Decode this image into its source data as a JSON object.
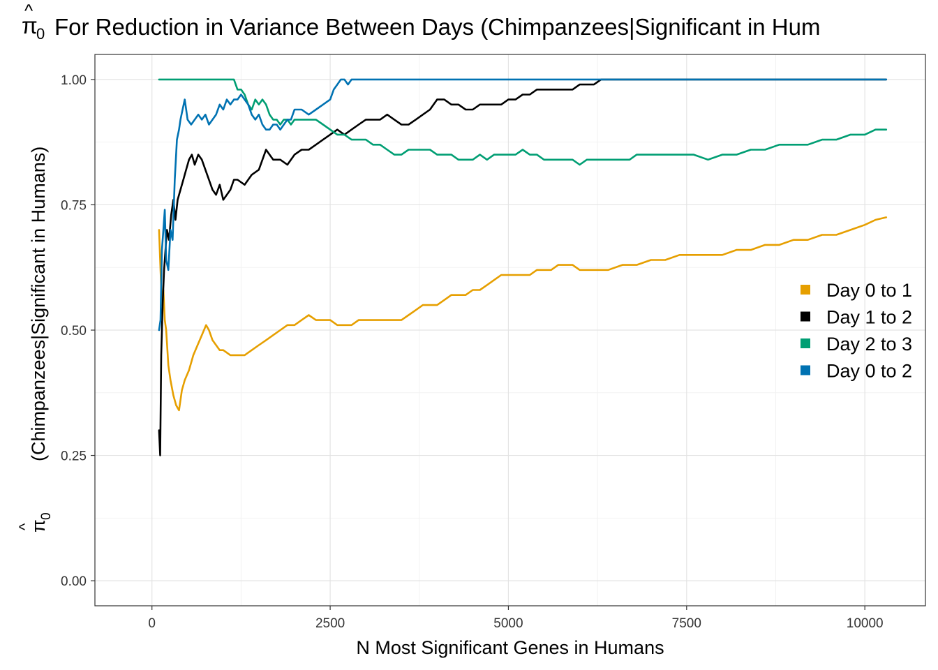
{
  "chart_data": {
    "type": "line",
    "title_symbol": "π",
    "title_symbol_hat": "^",
    "title_symbol_sub": "0",
    "title_text": "For Reduction in Variance Between Days (Chimpanzees|Significant in Hum",
    "xlabel": "N Most Significant Genes in Humans",
    "ylabel_symbol": "π",
    "ylabel_symbol_hat": "^",
    "ylabel_symbol_sub": "0",
    "ylabel_text": "(Chimpanzees|Significant in Humans)",
    "xlim": [
      -800,
      10850
    ],
    "ylim": [
      -0.05,
      1.05
    ],
    "xticks": [
      0,
      2500,
      5000,
      7500,
      10000
    ],
    "xtick_labels": [
      "0",
      "2500",
      "5000",
      "7500",
      "10000"
    ],
    "yticks": [
      0,
      0.25,
      0.5,
      0.75,
      1.0
    ],
    "ytick_labels": [
      "0.00",
      "0.25",
      "0.50",
      "0.75",
      "1.00"
    ],
    "grid": true,
    "legend_position": "right",
    "series": [
      {
        "name": "Day 0 to 1",
        "color": "#E69F00",
        "x": [
          100,
          120,
          140,
          160,
          180,
          200,
          230,
          260,
          300,
          340,
          380,
          420,
          460,
          520,
          580,
          640,
          700,
          760,
          800,
          850,
          900,
          950,
          1000,
          1100,
          1200,
          1300,
          1400,
          1500,
          1600,
          1700,
          1800,
          1900,
          2000,
          2100,
          2200,
          2300,
          2400,
          2500,
          2600,
          2700,
          2800,
          2900,
          3000,
          3100,
          3200,
          3300,
          3400,
          3500,
          3600,
          3700,
          3800,
          3900,
          4000,
          4100,
          4200,
          4300,
          4400,
          4500,
          4600,
          4700,
          4800,
          4900,
          5000,
          5100,
          5200,
          5300,
          5400,
          5500,
          5600,
          5700,
          5800,
          5900,
          6000,
          6200,
          6400,
          6600,
          6800,
          7000,
          7200,
          7400,
          7600,
          7800,
          8000,
          8200,
          8400,
          8600,
          8800,
          9000,
          9200,
          9400,
          9600,
          9800,
          10000,
          10150,
          10300
        ],
        "y": [
          0.7,
          0.62,
          0.55,
          0.58,
          0.52,
          0.5,
          0.43,
          0.4,
          0.37,
          0.35,
          0.34,
          0.38,
          0.4,
          0.42,
          0.45,
          0.47,
          0.49,
          0.51,
          0.5,
          0.48,
          0.47,
          0.46,
          0.46,
          0.45,
          0.45,
          0.45,
          0.46,
          0.47,
          0.48,
          0.49,
          0.5,
          0.51,
          0.51,
          0.52,
          0.53,
          0.52,
          0.52,
          0.52,
          0.51,
          0.51,
          0.51,
          0.52,
          0.52,
          0.52,
          0.52,
          0.52,
          0.52,
          0.52,
          0.53,
          0.54,
          0.55,
          0.55,
          0.55,
          0.56,
          0.57,
          0.57,
          0.57,
          0.58,
          0.58,
          0.59,
          0.6,
          0.61,
          0.61,
          0.61,
          0.61,
          0.61,
          0.62,
          0.62,
          0.62,
          0.63,
          0.63,
          0.63,
          0.62,
          0.62,
          0.62,
          0.63,
          0.63,
          0.64,
          0.64,
          0.65,
          0.65,
          0.65,
          0.65,
          0.66,
          0.66,
          0.67,
          0.67,
          0.68,
          0.68,
          0.69,
          0.69,
          0.7,
          0.71,
          0.72,
          0.725
        ]
      },
      {
        "name": "Day 1 to 2",
        "color": "#000000",
        "x": [
          100,
          115,
          130,
          150,
          170,
          190,
          210,
          240,
          270,
          300,
          330,
          360,
          400,
          440,
          480,
          520,
          560,
          600,
          650,
          700,
          750,
          800,
          850,
          900,
          950,
          1000,
          1050,
          1100,
          1150,
          1200,
          1300,
          1400,
          1500,
          1600,
          1700,
          1800,
          1900,
          2000,
          2100,
          2200,
          2300,
          2400,
          2500,
          2600,
          2700,
          2800,
          2900,
          3000,
          3100,
          3200,
          3300,
          3400,
          3500,
          3600,
          3700,
          3800,
          3900,
          4000,
          4100,
          4200,
          4300,
          4400,
          4500,
          4600,
          4700,
          4800,
          4900,
          5000,
          5100,
          5200,
          5300,
          5400,
          5500,
          5600,
          5700,
          5800,
          5900,
          6000,
          6100,
          6200,
          6300,
          6350,
          6500,
          7000,
          8000,
          9000,
          10000,
          10300
        ],
        "y": [
          0.3,
          0.25,
          0.45,
          0.55,
          0.62,
          0.66,
          0.7,
          0.68,
          0.73,
          0.76,
          0.72,
          0.76,
          0.78,
          0.8,
          0.82,
          0.84,
          0.85,
          0.83,
          0.85,
          0.84,
          0.82,
          0.8,
          0.78,
          0.77,
          0.79,
          0.76,
          0.77,
          0.78,
          0.8,
          0.8,
          0.79,
          0.81,
          0.82,
          0.86,
          0.84,
          0.84,
          0.83,
          0.85,
          0.86,
          0.86,
          0.87,
          0.88,
          0.89,
          0.9,
          0.89,
          0.9,
          0.91,
          0.92,
          0.92,
          0.92,
          0.93,
          0.92,
          0.91,
          0.91,
          0.92,
          0.93,
          0.94,
          0.96,
          0.96,
          0.95,
          0.95,
          0.94,
          0.94,
          0.95,
          0.95,
          0.95,
          0.95,
          0.96,
          0.96,
          0.97,
          0.97,
          0.98,
          0.98,
          0.98,
          0.98,
          0.98,
          0.98,
          0.99,
          0.99,
          0.99,
          1.0,
          1.0,
          1.0,
          1.0,
          1.0,
          1.0,
          1.0,
          1.0
        ]
      },
      {
        "name": "Day 2 to 3",
        "color": "#009E73",
        "x": [
          100,
          1100,
          1150,
          1200,
          1250,
          1300,
          1350,
          1400,
          1450,
          1500,
          1550,
          1600,
          1650,
          1700,
          1750,
          1800,
          1850,
          1900,
          1950,
          2000,
          2100,
          2200,
          2300,
          2400,
          2500,
          2600,
          2700,
          2800,
          2900,
          3000,
          3100,
          3200,
          3300,
          3400,
          3500,
          3600,
          3700,
          3800,
          3900,
          4000,
          4100,
          4200,
          4300,
          4400,
          4500,
          4600,
          4700,
          4800,
          4900,
          5000,
          5100,
          5200,
          5300,
          5400,
          5500,
          5600,
          5700,
          5800,
          5900,
          6000,
          6100,
          6200,
          6300,
          6400,
          6500,
          6600,
          6700,
          6800,
          6900,
          7000,
          7200,
          7400,
          7600,
          7800,
          8000,
          8200,
          8400,
          8600,
          8800,
          9000,
          9200,
          9400,
          9600,
          9800,
          10000,
          10150,
          10300
        ],
        "y": [
          1.0,
          1.0,
          1.0,
          0.98,
          0.98,
          0.97,
          0.95,
          0.94,
          0.96,
          0.95,
          0.96,
          0.95,
          0.93,
          0.92,
          0.92,
          0.91,
          0.92,
          0.92,
          0.91,
          0.92,
          0.92,
          0.92,
          0.92,
          0.91,
          0.9,
          0.89,
          0.89,
          0.88,
          0.88,
          0.88,
          0.87,
          0.87,
          0.86,
          0.85,
          0.85,
          0.86,
          0.86,
          0.86,
          0.86,
          0.85,
          0.85,
          0.85,
          0.84,
          0.84,
          0.84,
          0.85,
          0.84,
          0.85,
          0.85,
          0.85,
          0.85,
          0.86,
          0.85,
          0.85,
          0.84,
          0.84,
          0.84,
          0.84,
          0.84,
          0.83,
          0.84,
          0.84,
          0.84,
          0.84,
          0.84,
          0.84,
          0.84,
          0.85,
          0.85,
          0.85,
          0.85,
          0.85,
          0.85,
          0.84,
          0.85,
          0.85,
          0.86,
          0.86,
          0.87,
          0.87,
          0.87,
          0.88,
          0.88,
          0.89,
          0.89,
          0.9,
          0.9
        ]
      },
      {
        "name": "Day 0 to 2",
        "color": "#0072B2",
        "x": [
          100,
          120,
          140,
          160,
          180,
          200,
          230,
          260,
          290,
          320,
          350,
          380,
          400,
          430,
          460,
          500,
          550,
          600,
          650,
          700,
          750,
          800,
          850,
          900,
          950,
          1000,
          1050,
          1100,
          1150,
          1200,
          1250,
          1300,
          1350,
          1400,
          1450,
          1500,
          1550,
          1600,
          1650,
          1700,
          1750,
          1800,
          1850,
          1900,
          1950,
          2000,
          2100,
          2200,
          2300,
          2400,
          2500,
          2550,
          2600,
          2650,
          2700,
          2750,
          2800,
          2850,
          2900,
          3000,
          4000,
          6000,
          8000,
          10000,
          10300
        ],
        "y": [
          0.5,
          0.52,
          0.66,
          0.7,
          0.74,
          0.64,
          0.62,
          0.7,
          0.68,
          0.8,
          0.88,
          0.9,
          0.92,
          0.94,
          0.96,
          0.92,
          0.91,
          0.92,
          0.93,
          0.92,
          0.93,
          0.91,
          0.92,
          0.93,
          0.95,
          0.94,
          0.96,
          0.95,
          0.96,
          0.96,
          0.97,
          0.96,
          0.95,
          0.93,
          0.92,
          0.93,
          0.91,
          0.9,
          0.9,
          0.91,
          0.91,
          0.9,
          0.91,
          0.92,
          0.92,
          0.94,
          0.94,
          0.93,
          0.94,
          0.95,
          0.96,
          0.98,
          0.99,
          1.0,
          1.0,
          0.99,
          1.0,
          1.0,
          1.0,
          1.0,
          1.0,
          1.0,
          1.0,
          1.0,
          1.0
        ]
      }
    ]
  }
}
